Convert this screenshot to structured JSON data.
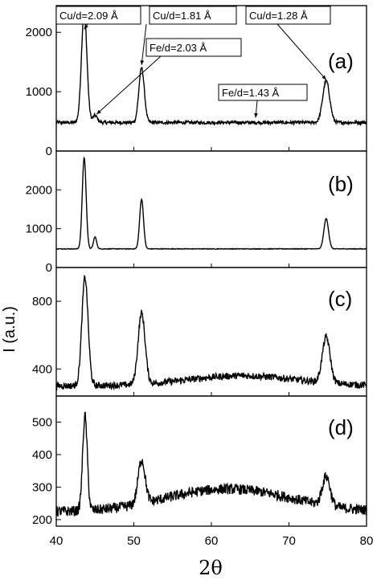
{
  "chart_data": {
    "type": "line",
    "xlabel": "2θ",
    "ylabel": "I (a.u.)",
    "xlim": [
      40,
      80
    ],
    "xticks": [
      "40",
      "50",
      "60",
      "70",
      "80"
    ],
    "shared_x": true,
    "panels": [
      {
        "tag": "(a)",
        "ylim": [
          0,
          2450
        ],
        "yticks": [
          {
            "v": 0,
            "label": "0"
          },
          {
            "v": 1000,
            "label": "1000"
          },
          {
            "v": 2000,
            "label": "2000"
          }
        ],
        "baseline": 480,
        "noise": 28,
        "peaks": [
          {
            "x": 43.6,
            "h": 1880,
            "w": 0.35
          },
          {
            "x": 45.0,
            "h": 120,
            "w": 0.3
          },
          {
            "x": 51.0,
            "h": 920,
            "w": 0.35
          },
          {
            "x": 74.8,
            "h": 700,
            "w": 0.45
          }
        ],
        "annotations": [
          {
            "label": "Cu/d=2.09 Å",
            "x": 43.6,
            "y": 2050
          },
          {
            "label": "Cu/d=1.81 Å",
            "x": 51.0,
            "y": 1450
          },
          {
            "label": "Cu/d=1.28 Å",
            "x": 74.8,
            "y": 1200
          },
          {
            "label": "Fe/d=2.03 Å",
            "x": 45.2,
            "y": 620
          },
          {
            "label": "Fe/d=1.43 Å",
            "x": 65.7,
            "y": 560
          }
        ]
      },
      {
        "tag": "(b)",
        "ylim": [
          0,
          3000
        ],
        "yticks": [
          {
            "v": 0,
            "label": "0"
          },
          {
            "v": 1000,
            "label": "1000"
          },
          {
            "v": 2000,
            "label": "2000"
          }
        ],
        "baseline": 480,
        "noise": 8,
        "peaks": [
          {
            "x": 43.6,
            "h": 2350,
            "w": 0.25
          },
          {
            "x": 45.0,
            "h": 310,
            "w": 0.2
          },
          {
            "x": 51.0,
            "h": 1280,
            "w": 0.25
          },
          {
            "x": 74.8,
            "h": 780,
            "w": 0.3
          }
        ],
        "annotations": []
      },
      {
        "tag": "(c)",
        "ylim": [
          240,
          1000
        ],
        "yticks": [
          {
            "v": 400,
            "label": "400"
          },
          {
            "v": 800,
            "label": "800"
          }
        ],
        "baseline": 300,
        "noise": 20,
        "peaks": [
          {
            "x": 43.7,
            "h": 640,
            "w": 0.4
          },
          {
            "x": 51.0,
            "h": 420,
            "w": 0.45
          },
          {
            "x": 74.8,
            "h": 270,
            "w": 0.5
          }
        ],
        "annotations": []
      },
      {
        "tag": "(d)",
        "ylim": [
          180,
          580
        ],
        "yticks": [
          {
            "v": 200,
            "label": "200"
          },
          {
            "v": 300,
            "label": "300"
          },
          {
            "v": 400,
            "label": "400"
          },
          {
            "v": 500,
            "label": "500"
          }
        ],
        "baseline": 225,
        "noise": 16,
        "peaks": [
          {
            "x": 43.7,
            "h": 290,
            "w": 0.3
          },
          {
            "x": 51.0,
            "h": 135,
            "w": 0.45
          },
          {
            "x": 74.8,
            "h": 90,
            "w": 0.5
          }
        ],
        "annotations": []
      }
    ]
  }
}
